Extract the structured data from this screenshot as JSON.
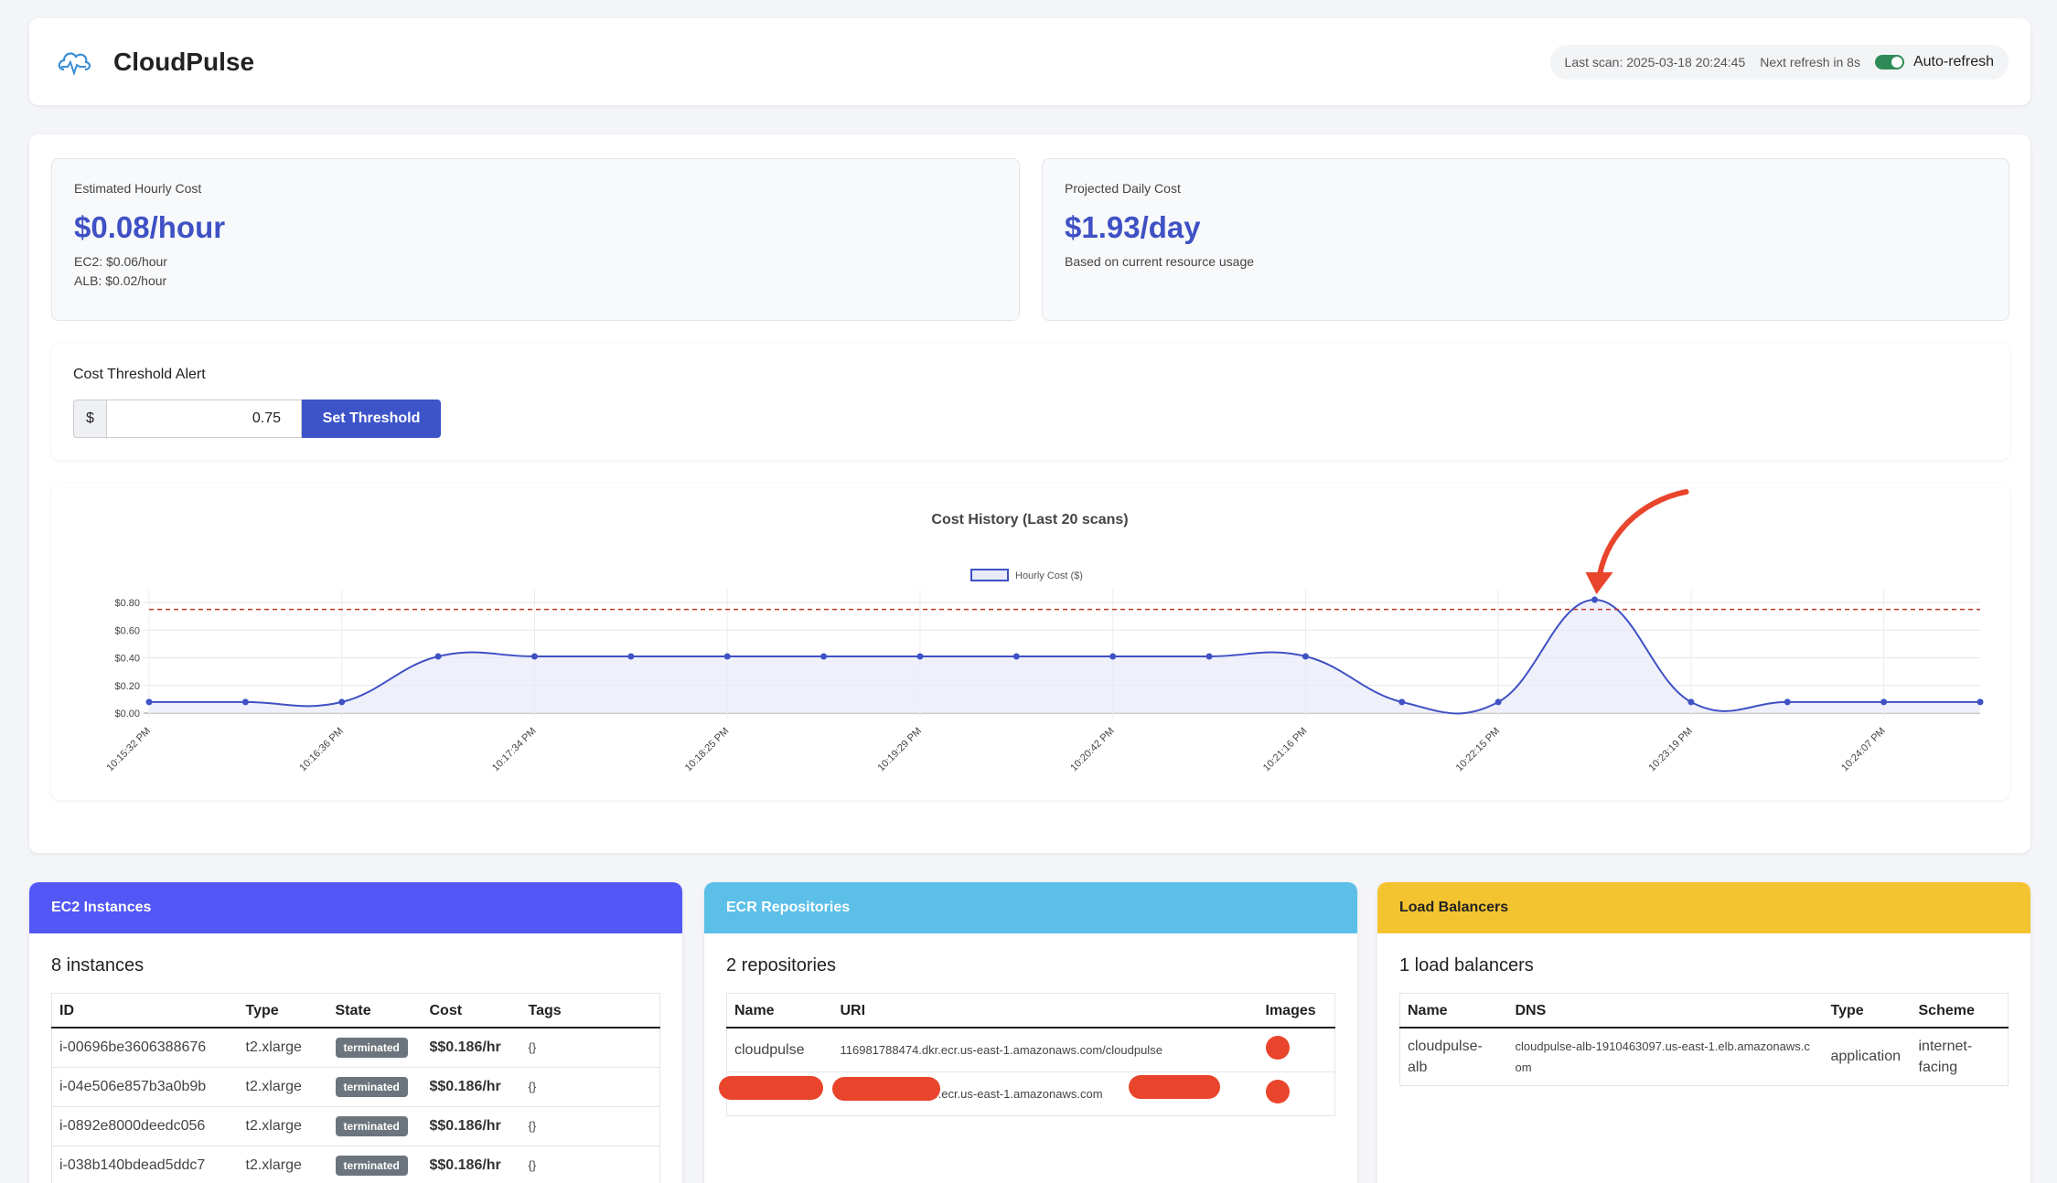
{
  "header": {
    "title": "CloudPulse",
    "last_scan": "Last scan: 2025-03-18 20:24:45",
    "next_refresh": "Next refresh in 8s",
    "auto_refresh_label": "Auto-refresh",
    "auto_refresh_on": true
  },
  "hourly": {
    "label": "Estimated Hourly Cost",
    "value": "$0.08/hour",
    "ec2": "EC2: $0.06/hour",
    "alb": "ALB: $0.02/hour"
  },
  "daily": {
    "label": "Projected Daily Cost",
    "value": "$1.93/day",
    "note": "Based on current resource usage"
  },
  "threshold": {
    "title": "Cost Threshold Alert",
    "currency": "$",
    "value": "0.75",
    "button": "Set Threshold"
  },
  "chart_data": {
    "type": "line",
    "title": "Cost History (Last 20 scans)",
    "series": [
      {
        "name": "Hourly Cost ($)",
        "values": [
          0.08,
          0.08,
          0.08,
          0.41,
          0.41,
          0.41,
          0.41,
          0.41,
          0.41,
          0.41,
          0.41,
          0.41,
          0.41,
          0.08,
          0.08,
          0.82,
          0.08,
          0.08,
          0.08,
          0.08
        ]
      }
    ],
    "x_tick_labels": [
      "10:15:32 PM",
      "10:16:36 PM",
      "10:17:34 PM",
      "10:18:25 PM",
      "10:19:29 PM",
      "10:20:42 PM",
      "10:21:16 PM",
      "10:22:15 PM",
      "10:23:19 PM",
      "10:24:07 PM"
    ],
    "y_tick_labels": [
      "$0.00",
      "$0.20",
      "$0.40",
      "$0.60",
      "$0.80"
    ],
    "ylim": [
      0,
      0.8
    ],
    "threshold_line": 0.75,
    "grid": true,
    "legend_position": "top-center",
    "colors": {
      "line": "#3f51c4",
      "fill": "#e8eaf8",
      "threshold": "#c0392b",
      "arrow": "#e8452c"
    }
  },
  "ec2": {
    "header": "EC2 Instances",
    "color": "#5257f5",
    "count": "8 instances",
    "columns": [
      "ID",
      "Type",
      "State",
      "Cost",
      "Tags"
    ],
    "rows": [
      {
        "id": "i-00696be3606388676",
        "type": "t2.xlarge",
        "state": "terminated",
        "cost": "$$0.186/hr",
        "tags": "{}"
      },
      {
        "id": "i-04e506e857b3a0b9b",
        "type": "t2.xlarge",
        "state": "terminated",
        "cost": "$$0.186/hr",
        "tags": "{}"
      },
      {
        "id": "i-0892e8000deedc056",
        "type": "t2.xlarge",
        "state": "terminated",
        "cost": "$$0.186/hr",
        "tags": "{}"
      },
      {
        "id": "i-038b140bdead5ddc7",
        "type": "t2.xlarge",
        "state": "terminated",
        "cost": "$$0.186/hr",
        "tags": "{}"
      }
    ]
  },
  "ecr": {
    "header": "ECR Repositories",
    "color": "#5bbfe8",
    "count": "2 repositories",
    "columns": [
      "Name",
      "URI",
      "Images"
    ],
    "rows": [
      {
        "name": "cloudpulse",
        "uri": "116981788474.dkr.ecr.us-east-1.amazonaws.com/cloudpulse"
      },
      {
        "name": "",
        "uri": "kr.ecr.us-east-1.amazonaws.com"
      }
    ]
  },
  "lb": {
    "header": "Load Balancers",
    "color": "#f4c430",
    "count": "1 load balancers",
    "columns": [
      "Name",
      "DNS",
      "Type",
      "Scheme"
    ],
    "rows": [
      {
        "name": "cloudpulse-alb",
        "dns": "cloudpulse-alb-1910463097.us-east-1.elb.amazonaws.com",
        "type": "application",
        "scheme": "internet-facing"
      }
    ]
  }
}
